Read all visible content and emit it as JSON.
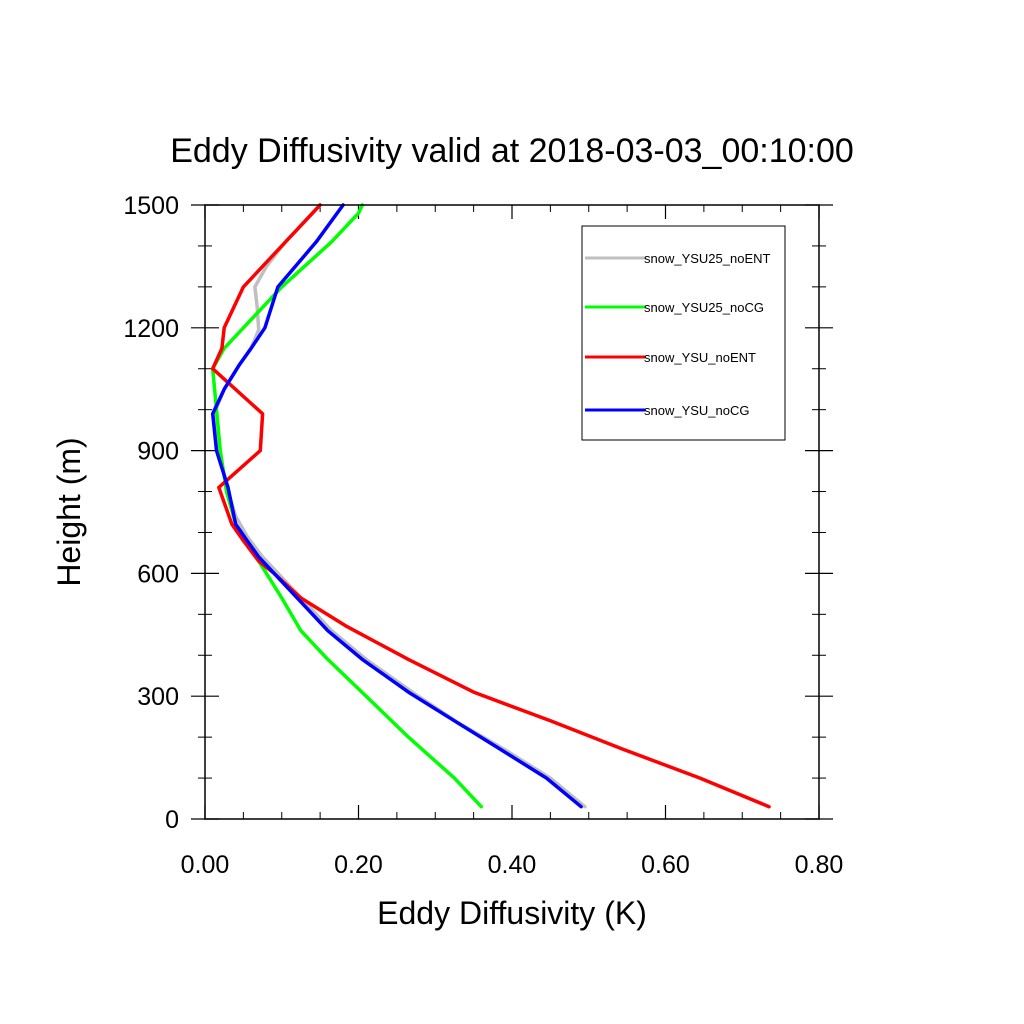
{
  "chart_data": {
    "type": "line",
    "title": "Eddy Diffusivity valid at 2018-03-03_00:10:00",
    "xlabel": "Eddy Diffusivity (K)",
    "ylabel": "Height (m)",
    "xlim": [
      0,
      0.8
    ],
    "ylim": [
      0,
      1500
    ],
    "xticks": [
      "0.00",
      "0.20",
      "0.40",
      "0.60",
      "0.80"
    ],
    "xtick_values": [
      0,
      0.2,
      0.4,
      0.6,
      0.8
    ],
    "yticks": [
      "0",
      "300",
      "600",
      "900",
      "1200",
      "1500"
    ],
    "ytick_values": [
      0,
      300,
      600,
      900,
      1200,
      1500
    ],
    "grid": false,
    "legend_position": "top-right",
    "series": [
      {
        "name": "snow_YSU25_noENT",
        "color": "#bfbfbf",
        "points": [
          [
            0.495,
            30
          ],
          [
            0.45,
            100
          ],
          [
            0.39,
            170
          ],
          [
            0.33,
            235
          ],
          [
            0.27,
            310
          ],
          [
            0.21,
            390
          ],
          [
            0.165,
            460
          ],
          [
            0.13,
            530
          ],
          [
            0.1,
            590
          ],
          [
            0.075,
            640
          ],
          [
            0.055,
            690
          ],
          [
            0.04,
            740
          ],
          [
            0.03,
            800
          ],
          [
            0.018,
            900
          ],
          [
            0.012,
            990
          ],
          [
            0.025,
            1050
          ],
          [
            0.045,
            1110
          ],
          [
            0.06,
            1150
          ],
          [
            0.07,
            1195
          ],
          [
            0.068,
            1250
          ],
          [
            0.065,
            1300
          ],
          [
            0.08,
            1350
          ],
          [
            0.105,
            1410
          ],
          [
            0.15,
            1500
          ]
        ]
      },
      {
        "name": "snow_YSU25_noCG",
        "color": "#00ff00",
        "points": [
          [
            0.36,
            30
          ],
          [
            0.325,
            100
          ],
          [
            0.265,
            200
          ],
          [
            0.21,
            300
          ],
          [
            0.16,
            390
          ],
          [
            0.125,
            460
          ],
          [
            0.1,
            540
          ],
          [
            0.08,
            600
          ],
          [
            0.06,
            660
          ],
          [
            0.04,
            720
          ],
          [
            0.028,
            800
          ],
          [
            0.02,
            900
          ],
          [
            0.015,
            1000
          ],
          [
            0.01,
            1100
          ],
          [
            0.025,
            1150
          ],
          [
            0.05,
            1200
          ],
          [
            0.1,
            1300
          ],
          [
            0.165,
            1410
          ],
          [
            0.2,
            1480
          ],
          [
            0.205,
            1500
          ]
        ]
      },
      {
        "name": "snow_YSU_noENT",
        "color": "#ff0000",
        "points": [
          [
            0.735,
            30
          ],
          [
            0.645,
            100
          ],
          [
            0.545,
            170
          ],
          [
            0.45,
            240
          ],
          [
            0.35,
            310
          ],
          [
            0.265,
            390
          ],
          [
            0.185,
            470
          ],
          [
            0.125,
            540
          ],
          [
            0.09,
            600
          ],
          [
            0.07,
            630
          ],
          [
            0.05,
            680
          ],
          [
            0.035,
            720
          ],
          [
            0.018,
            810
          ],
          [
            0.072,
            900
          ],
          [
            0.075,
            990
          ],
          [
            0.01,
            1100
          ],
          [
            0.022,
            1150
          ],
          [
            0.025,
            1200
          ],
          [
            0.05,
            1300
          ],
          [
            0.105,
            1410
          ],
          [
            0.15,
            1500
          ]
        ]
      },
      {
        "name": "snow_YSU_noCG",
        "color": "#0000ff",
        "points": [
          [
            0.49,
            30
          ],
          [
            0.445,
            100
          ],
          [
            0.385,
            170
          ],
          [
            0.325,
            240
          ],
          [
            0.265,
            310
          ],
          [
            0.205,
            390
          ],
          [
            0.16,
            460
          ],
          [
            0.13,
            520
          ],
          [
            0.1,
            580
          ],
          [
            0.07,
            640
          ],
          [
            0.055,
            680
          ],
          [
            0.04,
            720
          ],
          [
            0.03,
            810
          ],
          [
            0.015,
            900
          ],
          [
            0.01,
            990
          ],
          [
            0.025,
            1050
          ],
          [
            0.045,
            1110
          ],
          [
            0.06,
            1150
          ],
          [
            0.078,
            1200
          ],
          [
            0.095,
            1300
          ],
          [
            0.145,
            1410
          ],
          [
            0.18,
            1500
          ]
        ]
      }
    ]
  }
}
